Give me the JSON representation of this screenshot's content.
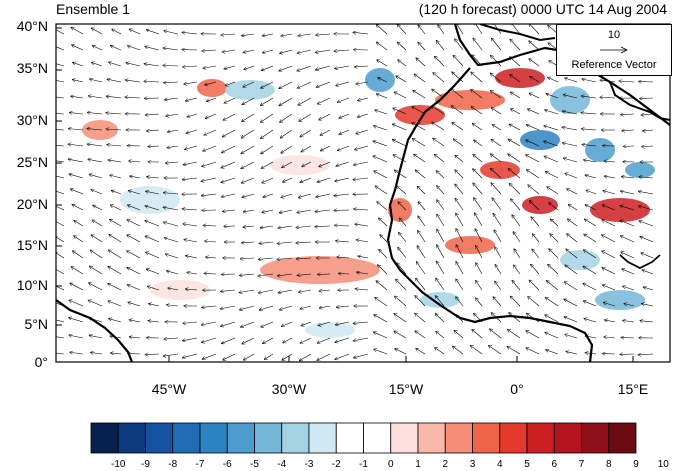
{
  "header": {
    "left_title": "Ensemble 1",
    "right_title": "(120 h forecast) 0000 UTC 14 Aug 2004"
  },
  "map": {
    "lat_labels": [
      "40°N",
      "35°N",
      "30°N",
      "25°N",
      "20°N",
      "15°N",
      "10°N",
      "5°N",
      "0°"
    ],
    "lon_labels": [
      "45°W",
      "30°W",
      "15°W",
      "0°",
      "15°E"
    ]
  },
  "reference": {
    "value": "10",
    "label": "Reference Vector"
  },
  "colorbar": {
    "labels": [
      "-10",
      "-9",
      "-8",
      "-7",
      "-6",
      "-5",
      "-4",
      "-3",
      "-2",
      "-1",
      "0",
      "1",
      "2",
      "3",
      "4",
      "5",
      "6",
      "7",
      "8",
      "9",
      "10"
    ],
    "colors": [
      "#08204f",
      "#0b3a80",
      "#1553a0",
      "#1f6cb4",
      "#2e83c2",
      "#4c9dcd",
      "#75b6d8",
      "#a4d2e4",
      "#cfe8f1",
      "#ffffff",
      "#ffffff",
      "#fde0dd",
      "#f9b8a9",
      "#f58e78",
      "#ef6548",
      "#e4392c",
      "#cc1f23",
      "#b3151f",
      "#8f0f19",
      "#6b0a10"
    ]
  }
}
